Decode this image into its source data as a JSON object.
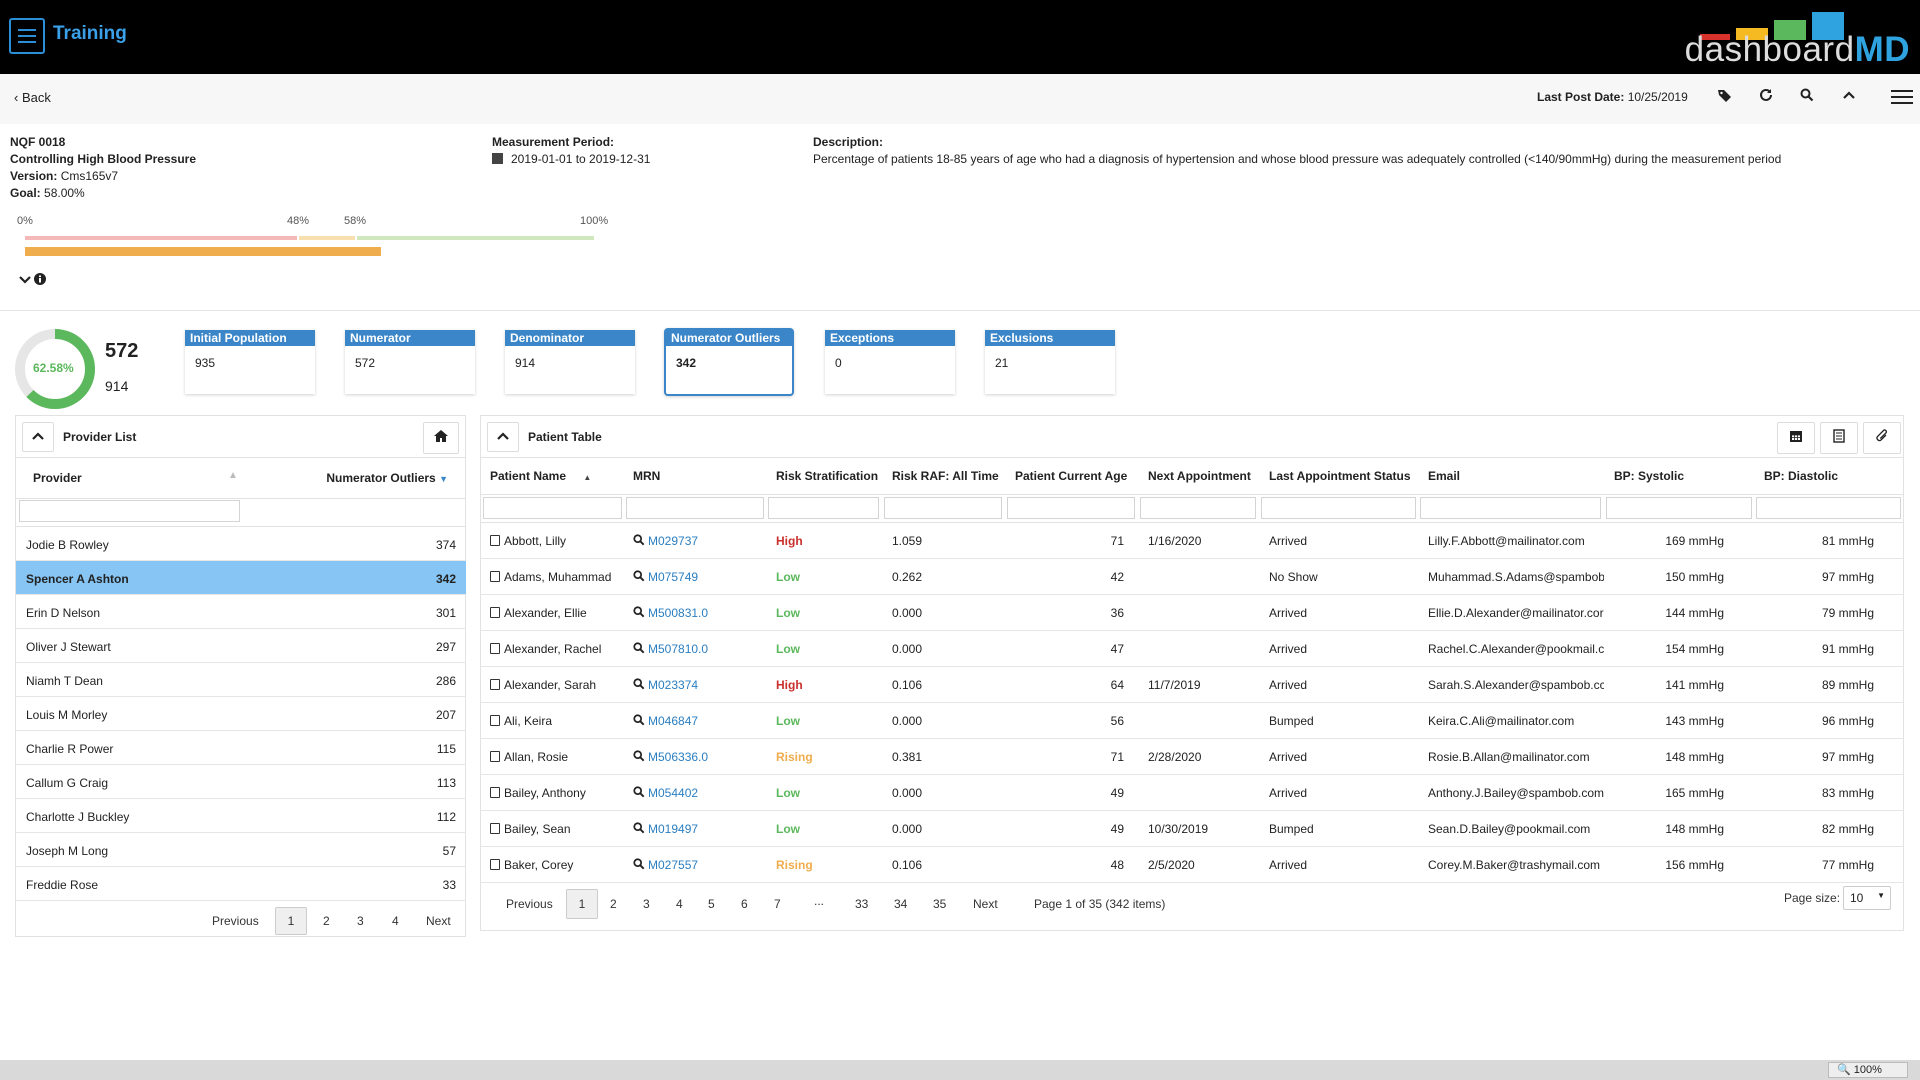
{
  "app": {
    "title": "Training",
    "logo_text_plain": "dashboard",
    "logo_text_bold": "MD"
  },
  "subheader": {
    "back_label": "Back",
    "last_post_label": "Last Post Date:",
    "last_post_value": "10/25/2019"
  },
  "measure": {
    "id": "NQF 0018",
    "name": "Controlling High Blood Pressure",
    "version_label": "Version:",
    "version": "Cms165v7",
    "goal_label": "Goal:",
    "goal": "58.00%",
    "period_label": "Measurement Period:",
    "period": "2019-01-01 to 2019-12-31",
    "description_label": "Description:",
    "description": "Percentage of patients 18-85 years of age who had a diagnosis of hypertension and whose blood pressure was adequately controlled (<140/90mmHg) during the measurement period",
    "scale": {
      "p0": "0%",
      "p48": "48%",
      "p58": "58%",
      "p100": "100%"
    },
    "progress_fraction": 0.6258
  },
  "summary": {
    "rate": "62.58%",
    "rate_fraction": 0.6258,
    "numerator": "572",
    "denominator": "914",
    "cards": [
      {
        "label": "Initial Population",
        "value": "935"
      },
      {
        "label": "Numerator",
        "value": "572"
      },
      {
        "label": "Denominator",
        "value": "914"
      },
      {
        "label": "Numerator Outliers",
        "value": "342"
      },
      {
        "label": "Exceptions",
        "value": "0"
      },
      {
        "label": "Exclusions",
        "value": "21"
      }
    ]
  },
  "provider_list": {
    "title": "Provider List",
    "col_provider": "Provider",
    "col_outliers": "Numerator Outliers",
    "rows": [
      {
        "name": "Jodie B Rowley",
        "count": "374"
      },
      {
        "name": "Spencer A Ashton",
        "count": "342"
      },
      {
        "name": "Erin D Nelson",
        "count": "301"
      },
      {
        "name": "Oliver J Stewart",
        "count": "297"
      },
      {
        "name": "Niamh T Dean",
        "count": "286"
      },
      {
        "name": "Louis M Morley",
        "count": "207"
      },
      {
        "name": "Charlie R Power",
        "count": "115"
      },
      {
        "name": "Callum G Craig",
        "count": "113"
      },
      {
        "name": "Charlotte J Buckley",
        "count": "112"
      },
      {
        "name": "Joseph M Long",
        "count": "57"
      },
      {
        "name": "Freddie Rose",
        "count": "33"
      }
    ],
    "pager": {
      "prev": "Previous",
      "pages": [
        "1",
        "2",
        "3",
        "4"
      ],
      "next": "Next"
    }
  },
  "patient_table": {
    "title": "Patient Table",
    "columns": [
      "Patient Name",
      "MRN",
      "Risk Stratification",
      "Risk RAF: All Time",
      "Patient Current Age",
      "Next Appointment",
      "Last Appointment Status",
      "Email",
      "BP: Systolic",
      "BP: Diastolic"
    ],
    "rows": [
      {
        "name": "Abbott, Lilly",
        "mrn": "M029737",
        "risk": "High",
        "raf": "1.059",
        "age": "71",
        "next": "1/16/2020",
        "status": "Arrived",
        "email": "Lilly.F.Abbott@mailinator.com",
        "sys": "169 mmHg",
        "dia": "81 mmHg"
      },
      {
        "name": "Adams, Muhammad",
        "mrn": "M075749",
        "risk": "Low",
        "raf": "0.262",
        "age": "42",
        "next": "",
        "status": "No Show",
        "email": "Muhammad.S.Adams@spambob",
        "sys": "150 mmHg",
        "dia": "97 mmHg"
      },
      {
        "name": "Alexander, Ellie",
        "mrn": "M500831.0",
        "risk": "Low",
        "raf": "0.000",
        "age": "36",
        "next": "",
        "status": "Arrived",
        "email": "Ellie.D.Alexander@mailinator.cor",
        "sys": "144 mmHg",
        "dia": "79 mmHg"
      },
      {
        "name": "Alexander, Rachel",
        "mrn": "M507810.0",
        "risk": "Low",
        "raf": "0.000",
        "age": "47",
        "next": "",
        "status": "Arrived",
        "email": "Rachel.C.Alexander@pookmail.c",
        "sys": "154 mmHg",
        "dia": "91 mmHg"
      },
      {
        "name": "Alexander, Sarah",
        "mrn": "M023374",
        "risk": "High",
        "raf": "0.106",
        "age": "64",
        "next": "11/7/2019",
        "status": "Arrived",
        "email": "Sarah.S.Alexander@spambob.cc",
        "sys": "141 mmHg",
        "dia": "89 mmHg"
      },
      {
        "name": "Ali, Keira",
        "mrn": "M046847",
        "risk": "Low",
        "raf": "0.000",
        "age": "56",
        "next": "",
        "status": "Bumped",
        "email": "Keira.C.Ali@mailinator.com",
        "sys": "143 mmHg",
        "dia": "96 mmHg"
      },
      {
        "name": "Allan, Rosie",
        "mrn": "M506336.0",
        "risk": "Rising",
        "raf": "0.381",
        "age": "71",
        "next": "2/28/2020",
        "status": "Arrived",
        "email": "Rosie.B.Allan@mailinator.com",
        "sys": "148 mmHg",
        "dia": "97 mmHg"
      },
      {
        "name": "Bailey, Anthony",
        "mrn": "M054402",
        "risk": "Low",
        "raf": "0.000",
        "age": "49",
        "next": "",
        "status": "Arrived",
        "email": "Anthony.J.Bailey@spambob.com",
        "sys": "165 mmHg",
        "dia": "83 mmHg"
      },
      {
        "name": "Bailey, Sean",
        "mrn": "M019497",
        "risk": "Low",
        "raf": "0.000",
        "age": "49",
        "next": "10/30/2019",
        "status": "Bumped",
        "email": "Sean.D.Bailey@pookmail.com",
        "sys": "148 mmHg",
        "dia": "82 mmHg"
      },
      {
        "name": "Baker, Corey",
        "mrn": "M027557",
        "risk": "Rising",
        "raf": "0.106",
        "age": "48",
        "next": "2/5/2020",
        "status": "Arrived",
        "email": "Corey.M.Baker@trashymail.com",
        "sys": "156 mmHg",
        "dia": "77 mmHg"
      }
    ],
    "pager": {
      "prev": "Previous",
      "pages": [
        "1",
        "2",
        "3",
        "4",
        "5",
        "6",
        "7",
        "...",
        "33",
        "34",
        "35"
      ],
      "next": "Next",
      "summary": "Page 1 of 35 (342 items)",
      "page_size_label": "Page size:",
      "page_size": "10"
    }
  },
  "statusbar": {
    "zoom": "100%"
  },
  "colors": {
    "accent": "#3a86c8",
    "selected_row": "#86c5f4",
    "high": "#c9302c",
    "low": "#5cb85c",
    "rising": "#f0ad4e"
  }
}
